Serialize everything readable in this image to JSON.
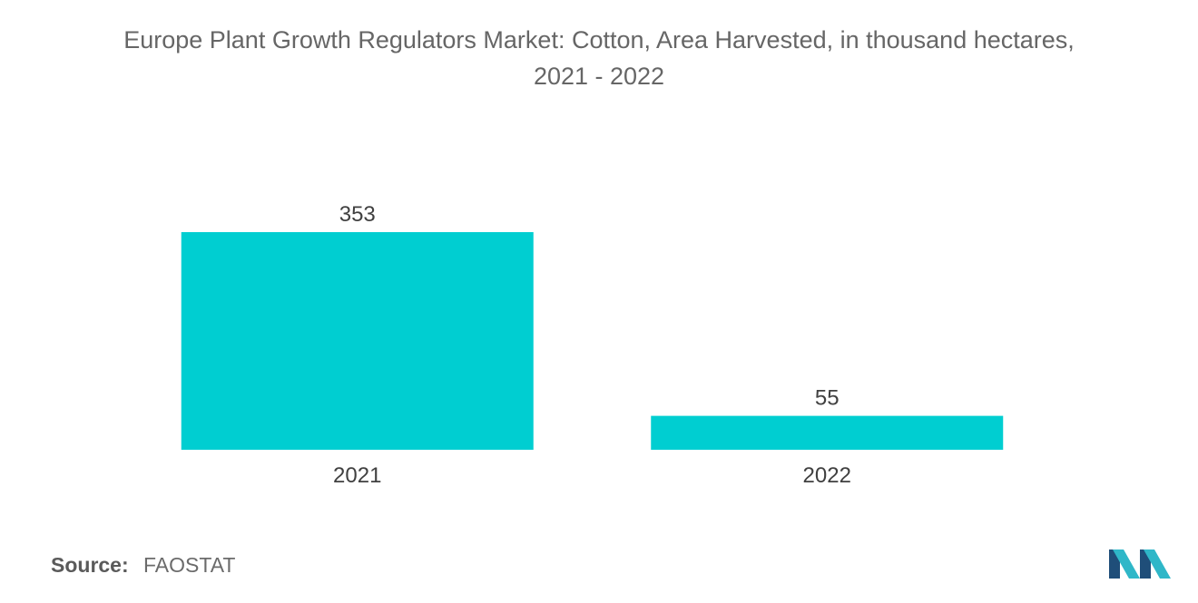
{
  "header": {
    "title_line1": "Europe Plant Growth Regulators Market: Cotton, Area Harvested, in thousand hectares,",
    "title_line2": "2021 - 2022"
  },
  "chart_data": {
    "type": "bar",
    "title": "Europe Plant Growth Regulators Market: Cotton, Area Harvested, in thousand hectares, 2021 - 2022",
    "categories": [
      "2021",
      "2022"
    ],
    "values": [
      353,
      55
    ],
    "data_labels": [
      "353",
      "55"
    ],
    "xlabel": "",
    "ylabel": "",
    "ylim": [
      0,
      353
    ],
    "grid": false,
    "legend": "none",
    "bar_color": "#00CED1"
  },
  "footer": {
    "source_label": "Source:",
    "source_value": "FAOSTAT"
  },
  "logo": {
    "icon": "mordor-intelligence-logo-icon",
    "colors": [
      "#1f4e79",
      "#2fb7c8"
    ]
  }
}
